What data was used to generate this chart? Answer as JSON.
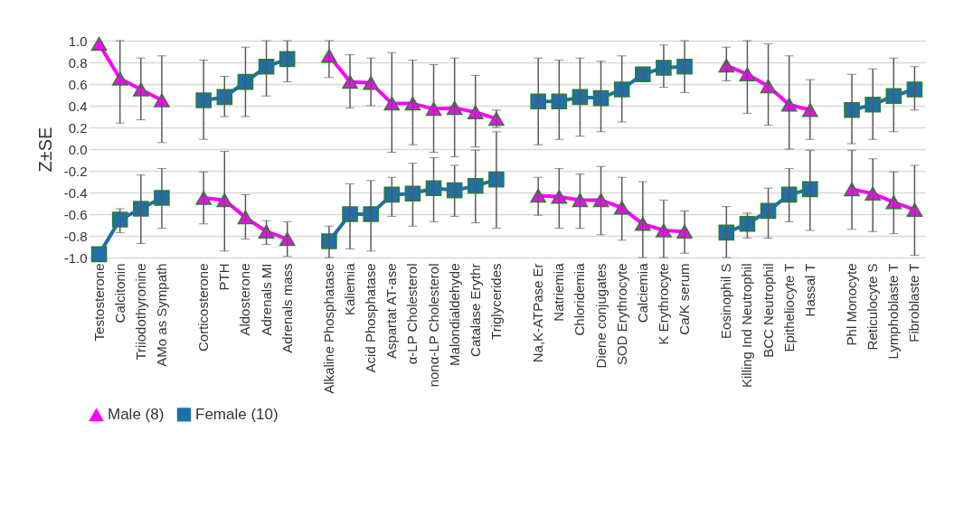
{
  "chart_data": {
    "type": "line",
    "ylabel": "Z±SE",
    "categories": [
      "Testosterone",
      "Calcitonin",
      "Triiodothyronine",
      "AMo as Sympath",
      null,
      "Corticosterone",
      "PTH",
      "Aldosterone",
      "Adrenals MI",
      "Adrenals mass",
      null,
      "Alkaline Phosphatase",
      "Kaliemia",
      "Acid Phosphatase",
      "Aspartat AT-ase",
      "α-LP Cholesterol",
      "nonα-LP Cholesterol",
      "Malondialdehyde",
      "Catalase Erythr",
      "Triglycerides",
      null,
      "Na,K-ATPase Er",
      "Natriemia",
      "Chloridemia",
      "Diene conjugates",
      "SOD Erythrocyte",
      "Calciemia",
      "K Erythrocyte",
      "Ca/K serum",
      null,
      "Eosinophil S",
      "Killing Ind Neutrophil",
      "BCC Neutrophil",
      "Epitheliocyte T",
      "Hassal T",
      null,
      "Phl Monocyte",
      "Reticulocyte S",
      "Lymphoblaste T",
      "Fibroblaste T"
    ],
    "series": [
      {
        "name": "Male (8)",
        "color": "#ff00ff",
        "marker": "triangle",
        "values": [
          0.97,
          0.65,
          0.55,
          0.45,
          null,
          -0.45,
          -0.47,
          -0.63,
          -0.76,
          -0.83,
          null,
          0.86,
          0.62,
          0.61,
          0.42,
          0.42,
          0.37,
          0.38,
          0.34,
          0.28,
          null,
          -0.43,
          -0.44,
          -0.47,
          -0.47,
          -0.54,
          -0.69,
          -0.75,
          -0.76,
          null,
          0.77,
          0.69,
          0.58,
          0.41,
          0.36,
          null,
          -0.37,
          -0.41,
          -0.49,
          -0.56
        ],
        "errors": [
          null,
          [
            0.24,
            1.0
          ],
          [
            0.27,
            0.84
          ],
          [
            0.06,
            0.86
          ],
          null,
          [
            -0.69,
            -0.21
          ],
          [
            -0.94,
            -0.02
          ],
          [
            -0.83,
            -0.42
          ],
          [
            -0.88,
            -0.66
          ],
          [
            -0.99,
            -0.67
          ],
          null,
          [
            0.66,
            1.0
          ],
          [
            0.38,
            0.87
          ],
          [
            0.4,
            0.84
          ],
          [
            -0.03,
            0.89
          ],
          [
            0.04,
            0.82
          ],
          [
            -0.03,
            0.78
          ],
          [
            -0.07,
            0.84
          ],
          [
            0.02,
            0.68
          ],
          [
            0.2,
            0.36
          ],
          null,
          [
            -0.61,
            -0.26
          ],
          [
            -0.73,
            -0.18
          ],
          [
            -0.73,
            -0.23
          ],
          [
            -0.79,
            -0.16
          ],
          [
            -0.84,
            -0.26
          ],
          [
            -1.0,
            -0.3
          ],
          [
            -1.0,
            -0.47
          ],
          [
            -0.96,
            -0.57
          ],
          null,
          [
            0.63,
            0.94
          ],
          [
            0.33,
            1.0
          ],
          [
            0.22,
            0.97
          ],
          [
            0.0,
            0.86
          ],
          [
            0.09,
            0.64
          ],
          null,
          [
            -0.74,
            -0.01
          ],
          [
            -0.76,
            -0.09
          ],
          [
            -0.78,
            -0.21
          ],
          [
            -0.98,
            -0.15
          ]
        ]
      },
      {
        "name": "Female (10)",
        "color": "#1f6fa8",
        "marker": "square",
        "values": [
          -0.97,
          -0.65,
          -0.55,
          -0.45,
          null,
          0.45,
          0.48,
          0.62,
          0.76,
          0.83,
          null,
          -0.85,
          -0.6,
          -0.6,
          -0.42,
          -0.41,
          -0.36,
          -0.38,
          -0.34,
          -0.28,
          null,
          0.44,
          0.44,
          0.48,
          0.47,
          0.55,
          0.69,
          0.75,
          0.76,
          null,
          -0.77,
          -0.69,
          -0.57,
          -0.42,
          -0.37,
          null,
          0.36,
          0.41,
          0.49,
          0.55
        ],
        "errors": [
          null,
          [
            -0.77,
            -0.55
          ],
          [
            -0.87,
            -0.24
          ],
          [
            -0.73,
            -0.18
          ],
          null,
          [
            0.09,
            0.82
          ],
          [
            0.3,
            0.67
          ],
          [
            0.3,
            0.94
          ],
          [
            0.49,
            1.0
          ],
          [
            0.62,
            1.0
          ],
          null,
          [
            -1.0,
            -0.71
          ],
          [
            -0.92,
            -0.32
          ],
          [
            -0.94,
            -0.29
          ],
          [
            -0.62,
            -0.26
          ],
          [
            -0.71,
            -0.13
          ],
          [
            -0.67,
            -0.08
          ],
          [
            -0.62,
            -0.15
          ],
          [
            -0.68,
            -0.01
          ],
          [
            -0.73,
            0.16
          ],
          null,
          [
            0.04,
            0.84
          ],
          [
            0.09,
            0.82
          ],
          [
            0.12,
            0.84
          ],
          [
            0.16,
            0.81
          ],
          [
            0.25,
            0.86
          ],
          [
            0.65,
            0.73
          ],
          [
            0.57,
            0.96
          ],
          [
            0.52,
            1.0
          ],
          null,
          [
            -1.0,
            -0.53
          ],
          [
            -0.82,
            -0.59
          ],
          [
            -0.82,
            -0.36
          ],
          [
            -0.67,
            -0.18
          ],
          [
            -0.75,
            -0.01
          ],
          null,
          [
            0.05,
            0.69
          ],
          [
            0.09,
            0.74
          ],
          [
            0.16,
            0.84
          ],
          [
            0.36,
            0.76
          ]
        ]
      }
    ],
    "ylim": [
      -1.0,
      1.0
    ],
    "yticks": [
      {
        "value": -1,
        "label": "-1.0"
      },
      {
        "value": -0.8,
        "label": "-0.8"
      },
      {
        "value": -0.6,
        "label": "-0.6"
      },
      {
        "value": -0.4,
        "label": "-0.4"
      },
      {
        "value": -0.2,
        "label": "-0.2"
      },
      {
        "value": 0,
        "label": "0.0"
      },
      {
        "value": 0.2,
        "label": "0.2"
      },
      {
        "value": 0.4,
        "label": "0.4"
      },
      {
        "value": 0.6,
        "label": "0.6"
      },
      {
        "value": 0.8,
        "label": "0.8"
      },
      {
        "value": 1,
        "label": "1.0"
      }
    ],
    "grid": "y",
    "legend": "bottom",
    "line_style": "solid"
  }
}
